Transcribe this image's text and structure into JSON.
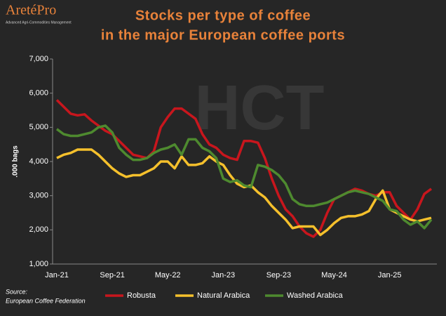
{
  "header": {
    "logo": "AretéPro",
    "logo_tagline": "Advanced Agri-Commodities Management",
    "watermark": "HCT"
  },
  "chart_data": {
    "type": "line",
    "title": [
      "Stocks per type of coffee",
      "in the major European coffee ports"
    ],
    "y_label": ".000 bags",
    "source": [
      "Source:",
      "European Coffee Federation"
    ],
    "categories": [
      "Jan-21",
      null,
      null,
      null,
      null,
      null,
      null,
      null,
      "Sep-21",
      null,
      null,
      null,
      null,
      null,
      null,
      null,
      "May-22",
      null,
      null,
      null,
      null,
      null,
      null,
      null,
      "Jan-23",
      null,
      null,
      null,
      null,
      null,
      null,
      null,
      "Sep-23",
      null,
      null,
      null,
      null,
      null,
      null,
      null,
      "May-24",
      null,
      null,
      null,
      null,
      null,
      null,
      null,
      "Jan-25",
      null,
      null,
      null,
      null,
      null,
      null
    ],
    "series": [
      {
        "name": "Robusta",
        "color": "#c8161d",
        "values": [
          5800,
          5600,
          5400,
          5350,
          5380,
          5200,
          5050,
          4900,
          4800,
          4600,
          4400,
          4200,
          4150,
          4100,
          4300,
          5000,
          5300,
          5550,
          5550,
          5400,
          5250,
          4800,
          4500,
          4400,
          4200,
          4100,
          4050,
          4600,
          4600,
          4550,
          4100,
          3500,
          3000,
          2600,
          2400,
          2100,
          1900,
          1800,
          2000,
          2500,
          2900,
          3000,
          3100,
          3200,
          3150,
          3050,
          3000,
          3100,
          3100,
          2700,
          2500,
          2300,
          2600,
          3050,
          3200
        ]
      },
      {
        "name": "Natural Arabica",
        "color": "#f5c02c",
        "values": [
          4100,
          4200,
          4250,
          4350,
          4350,
          4350,
          4200,
          4000,
          3800,
          3650,
          3550,
          3600,
          3600,
          3700,
          3800,
          4000,
          4000,
          3800,
          4150,
          3900,
          3900,
          3950,
          4150,
          4000,
          3900,
          3600,
          3350,
          3250,
          3300,
          3100,
          2950,
          2700,
          2500,
          2300,
          2050,
          2100,
          2100,
          2100,
          1850,
          2000,
          2200,
          2350,
          2400,
          2400,
          2450,
          2550,
          2900,
          3150,
          2600,
          2500,
          2400,
          2300,
          2250,
          2300,
          2350
        ]
      },
      {
        "name": "Washed Arabica",
        "color": "#4e8a2f",
        "values": [
          4950,
          4800,
          4750,
          4750,
          4800,
          4850,
          5000,
          5050,
          4850,
          4400,
          4200,
          4050,
          4050,
          4100,
          4250,
          4350,
          4400,
          4500,
          4200,
          4650,
          4650,
          4400,
          4300,
          4100,
          3500,
          3400,
          3450,
          3300,
          3250,
          3900,
          3850,
          3750,
          3600,
          3350,
          2900,
          2750,
          2700,
          2700,
          2750,
          2800,
          2900,
          3000,
          3100,
          3150,
          3100,
          3050,
          2950,
          2850,
          2600,
          2550,
          2300,
          2150,
          2250,
          2050,
          2300
        ]
      }
    ],
    "ylim": [
      1000,
      7000
    ],
    "yticks": [
      {
        "value": 1000,
        "label": "1,000"
      },
      {
        "value": 2000,
        "label": "2,000"
      },
      {
        "value": 3000,
        "label": "3,000"
      },
      {
        "value": 4000,
        "label": "4,000"
      },
      {
        "value": 5000,
        "label": "5,000"
      },
      {
        "value": 6000,
        "label": "6,000"
      },
      {
        "value": 7000,
        "label": "7,000"
      }
    ],
    "grid": false
  }
}
